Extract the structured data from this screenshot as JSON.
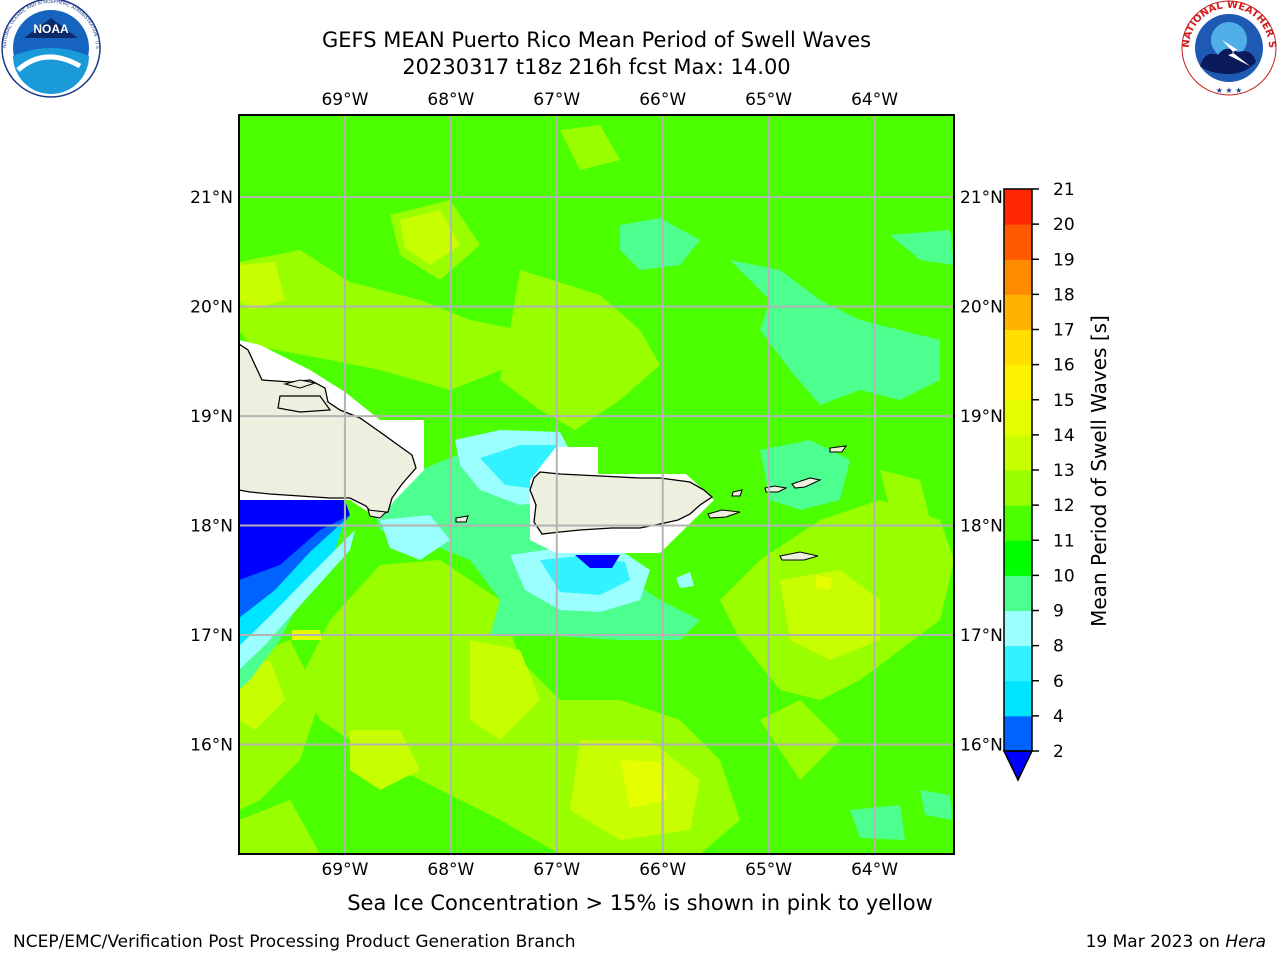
{
  "title": {
    "line1": "GEFS MEAN Puerto Rico Mean Period of Swell Waves",
    "line2": "20230317 t18z 216h fcst   Max: 14.00"
  },
  "map": {
    "lon_range": [
      -70.0,
      -63.25
    ],
    "lat_range": [
      15.0,
      21.75
    ],
    "lon_ticks": [
      -69,
      -68,
      -67,
      -66,
      -65,
      -64
    ],
    "lat_ticks": [
      16,
      17,
      18,
      19,
      20,
      21
    ],
    "lon_labels": [
      "69°W",
      "68°W",
      "67°W",
      "66°W",
      "65°W",
      "64°W"
    ],
    "lat_labels": [
      "16°N",
      "17°N",
      "18°N",
      "19°N",
      "20°N",
      "21°N"
    ],
    "land_color": "#efefdf",
    "grid": true
  },
  "colorbar": {
    "label": "Mean Period of Swell Waves [s]",
    "ticks": [
      "2",
      "4",
      "6",
      "8",
      "9",
      "10",
      "11",
      "12",
      "13",
      "14",
      "15",
      "16",
      "17",
      "18",
      "19",
      "20",
      "21"
    ],
    "colors": [
      "#0062ff",
      "#00e5ff",
      "#33f2ff",
      "#9cffff",
      "#4cff8f",
      "#00ff00",
      "#4cff00",
      "#99ff00",
      "#c8ff00",
      "#e6ff00",
      "#fff200",
      "#ffde00",
      "#ffb200",
      "#ff8c00",
      "#ff5a00",
      "#ff2600"
    ],
    "under_color": "#0000ff"
  },
  "caption": "Sea Ice Concentration > 15% is shown in pink to yellow",
  "credit": "NCEP/EMC/Verification Post Processing Product Generation Branch",
  "date": {
    "prefix": "19 Mar 2023 on",
    "machine": "Hera"
  },
  "logos": {
    "noaa_text": "NOAA",
    "noaa_ring": "NATIONAL OCEANIC AND ATMOSPHERIC ADMINISTRATION · U.S. DEPARTMENT OF COMMERCE",
    "nws_ring": "NATIONAL WEATHER SERVICE"
  }
}
